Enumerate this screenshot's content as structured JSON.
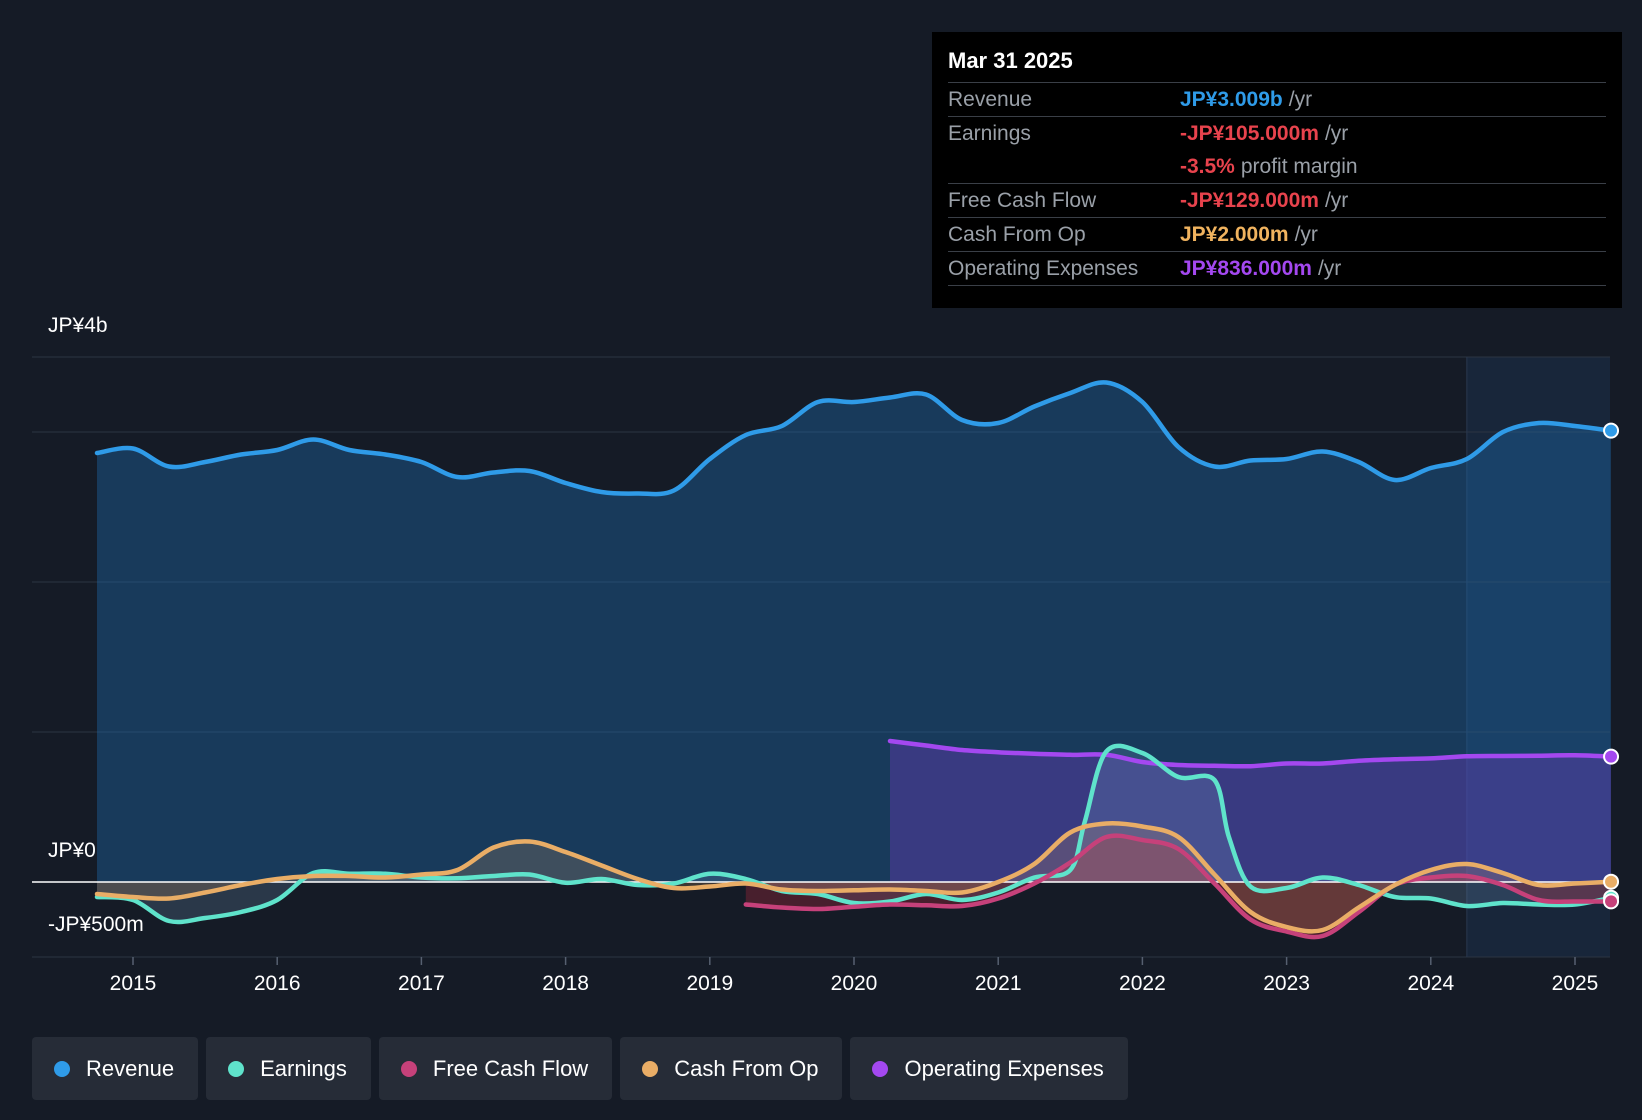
{
  "tooltip": {
    "date": "Mar 31 2025",
    "rows": [
      {
        "label": "Revenue",
        "value": "JP¥3.009b",
        "unit": "/yr",
        "color": "#2f9be8"
      },
      {
        "label": "Earnings",
        "value": "-JP¥105.000m",
        "unit": "/yr",
        "color": "#e8434d"
      },
      {
        "label": "",
        "value": "-3.5%",
        "unit": "profit margin",
        "color": "#e8434d"
      },
      {
        "label": "Free Cash Flow",
        "value": "-JP¥129.000m",
        "unit": "/yr",
        "color": "#e8434d"
      },
      {
        "label": "Cash From Op",
        "value": "JP¥2.000m",
        "unit": "/yr",
        "color": "#f0b35f"
      },
      {
        "label": "Operating Expenses",
        "value": "JP¥836.000m",
        "unit": "/yr",
        "color": "#a448f0"
      }
    ]
  },
  "legend": [
    {
      "label": "Revenue",
      "color": "#2f9be8"
    },
    {
      "label": "Earnings",
      "color": "#5fe3cb"
    },
    {
      "label": "Free Cash Flow",
      "color": "#c6417a"
    },
    {
      "label": "Cash From Op",
      "color": "#e9ad66"
    },
    {
      "label": "Operating Expenses",
      "color": "#a448f0"
    }
  ],
  "chart_data": {
    "type": "line",
    "title": "",
    "xlabel": "",
    "ylabel": "",
    "unit": "JP¥ millions",
    "ylim": [
      -500,
      3500
    ],
    "y_tick_labels": [
      {
        "value": 3500,
        "label": "JP¥4b"
      },
      {
        "value": 0,
        "label": "JP¥0"
      },
      {
        "value": -500,
        "label": "-JP¥500m"
      }
    ],
    "xlim": [
      2014.3,
      2025.25
    ],
    "x_tick_labels": [
      "2015",
      "2016",
      "2017",
      "2018",
      "2019",
      "2020",
      "2021",
      "2022",
      "2023",
      "2024",
      "2025"
    ],
    "x_ticks": [
      2015,
      2016,
      2017,
      2018,
      2019,
      2020,
      2021,
      2022,
      2023,
      2024,
      2025
    ],
    "highlight_start": 2024.25,
    "series": [
      {
        "name": "Revenue",
        "color": "#2f9be8",
        "x": [
          2014.75,
          2015.0,
          2015.25,
          2015.5,
          2015.75,
          2016.0,
          2016.25,
          2016.5,
          2016.75,
          2017.0,
          2017.25,
          2017.5,
          2017.75,
          2018.0,
          2018.25,
          2018.5,
          2018.75,
          2019.0,
          2019.25,
          2019.5,
          2019.75,
          2020.0,
          2020.25,
          2020.5,
          2020.75,
          2021.0,
          2021.25,
          2021.5,
          2021.75,
          2022.0,
          2022.25,
          2022.5,
          2022.75,
          2023.0,
          2023.25,
          2023.5,
          2023.75,
          2024.0,
          2024.25,
          2024.5,
          2024.75,
          2025.0,
          2025.25
        ],
        "values": [
          2860,
          2890,
          2770,
          2800,
          2850,
          2880,
          2950,
          2880,
          2850,
          2800,
          2700,
          2730,
          2740,
          2660,
          2600,
          2590,
          2610,
          2820,
          2980,
          3040,
          3200,
          3200,
          3230,
          3250,
          3080,
          3060,
          3170,
          3260,
          3330,
          3200,
          2900,
          2770,
          2810,
          2820,
          2870,
          2800,
          2680,
          2760,
          2820,
          3000,
          3060,
          3040,
          3009
        ]
      },
      {
        "name": "Earnings",
        "color": "#5fe3cb",
        "x": [
          2014.75,
          2015.0,
          2015.25,
          2015.5,
          2015.75,
          2016.0,
          2016.25,
          2016.5,
          2016.75,
          2017.0,
          2017.25,
          2017.5,
          2017.75,
          2018.0,
          2018.25,
          2018.5,
          2018.75,
          2019.0,
          2019.25,
          2019.5,
          2019.75,
          2020.0,
          2020.25,
          2020.5,
          2020.75,
          2021.0,
          2021.25,
          2021.5,
          2021.6,
          2021.75,
          2022.0,
          2022.25,
          2022.5,
          2022.6,
          2022.75,
          2023.0,
          2023.25,
          2023.5,
          2023.75,
          2024.0,
          2024.25,
          2024.5,
          2024.75,
          2025.0,
          2025.25
        ],
        "values": [
          -100,
          -120,
          -260,
          -240,
          -200,
          -120,
          60,
          55,
          55,
          30,
          25,
          40,
          50,
          -5,
          20,
          -20,
          -10,
          55,
          20,
          -60,
          -80,
          -140,
          -130,
          -80,
          -120,
          -70,
          30,
          80,
          400,
          870,
          860,
          700,
          680,
          300,
          -30,
          -40,
          30,
          -20,
          -100,
          -110,
          -160,
          -140,
          -150,
          -150,
          -105
        ]
      },
      {
        "name": "Free Cash Flow",
        "color": "#c6417a",
        "x": [
          2019.25,
          2019.5,
          2019.75,
          2020.0,
          2020.25,
          2020.5,
          2020.75,
          2021.0,
          2021.25,
          2021.5,
          2021.75,
          2022.0,
          2022.25,
          2022.5,
          2022.75,
          2023.0,
          2023.25,
          2023.5,
          2023.75,
          2024.0,
          2024.25,
          2024.5,
          2024.75,
          2025.0,
          2025.25
        ],
        "values": [
          -150,
          -170,
          -180,
          -165,
          -150,
          -155,
          -160,
          -110,
          -10,
          130,
          300,
          280,
          220,
          -10,
          -250,
          -330,
          -360,
          -200,
          -20,
          30,
          40,
          -20,
          -120,
          -130,
          -129
        ]
      },
      {
        "name": "Cash From Op",
        "color": "#e9ad66",
        "x": [
          2014.75,
          2015.0,
          2015.25,
          2015.5,
          2015.75,
          2016.0,
          2016.25,
          2016.5,
          2016.75,
          2017.0,
          2017.25,
          2017.5,
          2017.75,
          2018.0,
          2018.25,
          2018.5,
          2018.75,
          2019.0,
          2019.25,
          2019.5,
          2019.75,
          2020.0,
          2020.25,
          2020.5,
          2020.75,
          2021.0,
          2021.25,
          2021.5,
          2021.75,
          2022.0,
          2022.25,
          2022.5,
          2022.75,
          2023.0,
          2023.25,
          2023.5,
          2023.75,
          2024.0,
          2024.25,
          2024.5,
          2024.75,
          2025.0,
          2025.25
        ],
        "values": [
          -80,
          -100,
          -110,
          -70,
          -20,
          20,
          40,
          40,
          30,
          50,
          80,
          230,
          270,
          200,
          110,
          20,
          -40,
          -30,
          -10,
          -50,
          -60,
          -55,
          -50,
          -60,
          -70,
          0,
          120,
          330,
          390,
          370,
          300,
          50,
          -200,
          -300,
          -320,
          -170,
          -20,
          80,
          120,
          60,
          -20,
          -10,
          2
        ]
      },
      {
        "name": "Operating Expenses",
        "color": "#a448f0",
        "x": [
          2020.25,
          2020.5,
          2020.75,
          2021.0,
          2021.25,
          2021.5,
          2021.75,
          2022.0,
          2022.25,
          2022.5,
          2022.75,
          2023.0,
          2023.25,
          2023.5,
          2023.75,
          2024.0,
          2024.25,
          2024.5,
          2024.75,
          2025.0,
          2025.25
        ],
        "values": [
          940,
          910,
          880,
          865,
          855,
          848,
          848,
          800,
          780,
          775,
          772,
          790,
          790,
          808,
          818,
          824,
          838,
          840,
          842,
          845,
          836
        ]
      }
    ]
  }
}
